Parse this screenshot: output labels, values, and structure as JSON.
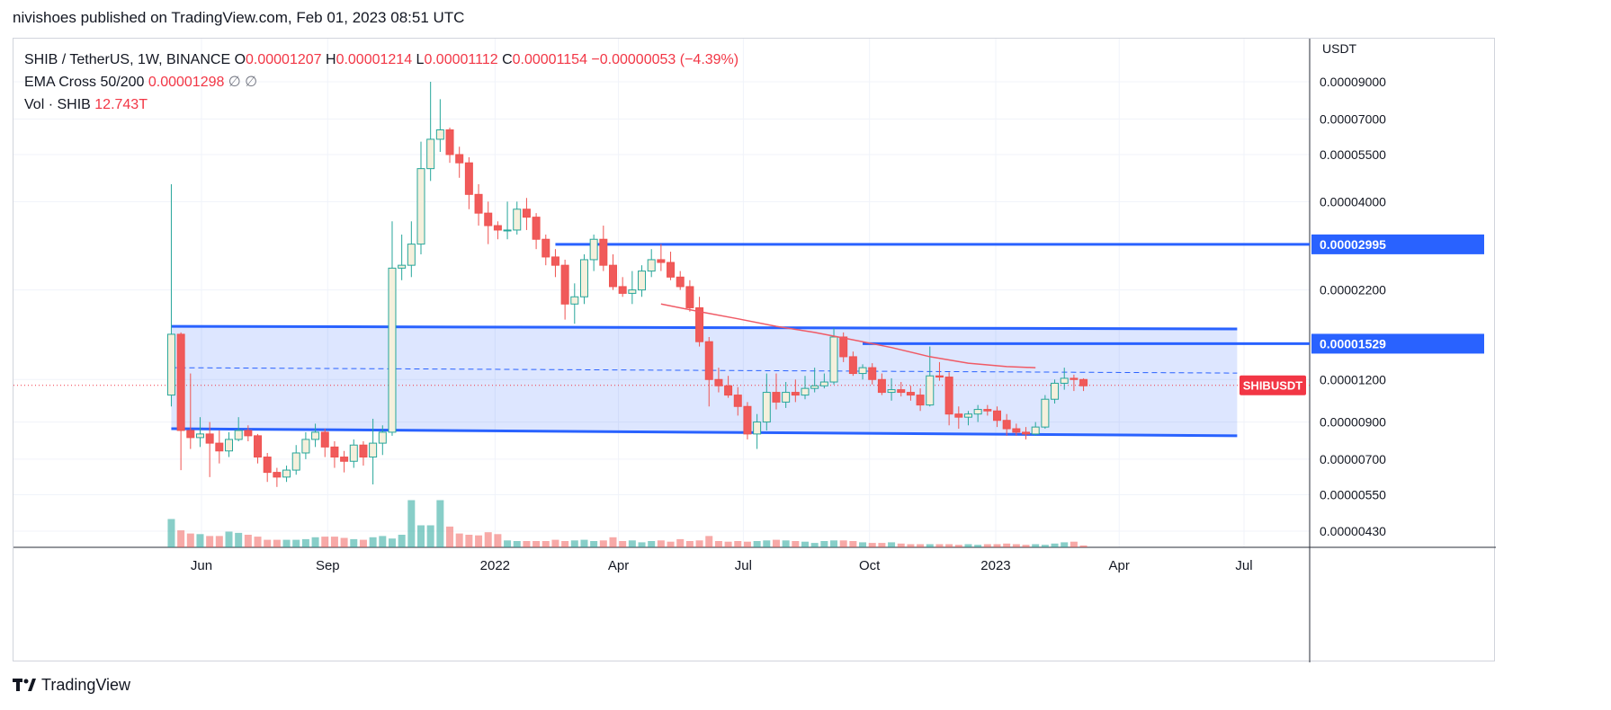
{
  "header": {
    "published_by": "nivishoes published on TradingView.com, Feb 01, 2023 08:51 UTC"
  },
  "legend": {
    "symbol": "SHIB / TetherUS, 1W, BINANCE",
    "open_label": "O",
    "open": "0.00001207",
    "high_label": "H",
    "high": "0.00001214",
    "low_label": "L",
    "low": "0.00001112",
    "close_label": "C",
    "close": "0.00001154",
    "change": "−0.00000053 (−4.39%)",
    "ema_label": "EMA Cross 50/200",
    "ema_value": "0.00001298",
    "ema_extra1": "∅",
    "ema_extra2": "∅",
    "vol_label": "Vol · SHIB",
    "vol_value": "12.743T"
  },
  "footer": {
    "brand": "TradingView"
  },
  "colors": {
    "up": "#26a69a",
    "down": "#ef5350",
    "up_fill": "#f5f0dc",
    "down_fill": "#f05a5a",
    "line": "#2962ff",
    "ema": "#f05a65",
    "zone": "rgba(41,98,255,0.16)",
    "vol_up": "rgba(38,166,154,0.55)",
    "vol_down": "rgba(239,83,80,0.5)"
  },
  "chart_data": {
    "type": "candlestick",
    "interval": "1W",
    "yscale": "log",
    "ylim": [
      3.8e-06,
      1.05e-05
    ],
    "yaxis_unit": "USDT",
    "yticks": [
      "0.00009000",
      "0.00007000",
      "0.00005500",
      "0.00004000",
      "0.00002200",
      "0.00001200",
      "0.00000900",
      "0.00000700",
      "0.00000550",
      "0.00000430"
    ],
    "ytick_values": [
      9e-05,
      7e-05,
      5.5e-05,
      4e-05,
      2.2e-05,
      1.2e-05,
      9e-06,
      7e-06,
      5.5e-06,
      4.3e-06
    ],
    "xticks": [
      "Jun",
      "Sep",
      "2022",
      "Apr",
      "Jul",
      "Oct",
      "2023",
      "Apr",
      "Jul"
    ],
    "xtick_dates": [
      "2021-06-01",
      "2021-09-01",
      "2022-01-01",
      "2022-04-01",
      "2022-07-01",
      "2022-10-01",
      "2023-01-01",
      "2023-04-01",
      "2023-07-01"
    ],
    "price_labels": [
      {
        "text": "0.00002995",
        "value": 2.995e-05
      },
      {
        "text": "0.00001529",
        "value": 1.529e-05
      },
      {
        "text": "SHIBUSDT",
        "value": 1.154e-05
      }
    ],
    "horizontal_lines": [
      {
        "value": 2.995e-05,
        "from": "2022-02-14",
        "to": "2023-07-31"
      },
      {
        "value": 1.529e-05,
        "from": "2022-09-26",
        "to": "2023-07-31"
      }
    ],
    "range_zone": {
      "top_from": 1.72e-05,
      "top_to": 1.69e-05,
      "bottom_from": 8.6e-06,
      "bottom_to": 8.2e-06,
      "from": "2021-05-10",
      "to": "2023-06-26"
    },
    "dashed_level": 1.3e-05,
    "current_price": 1.154e-05,
    "series": [
      {
        "name": "SHIB",
        "o": [
          1.08e-05,
          1.63e-05,
          8.5e-06,
          8.1e-06,
          8.3e-06,
          7.8e-06,
          7.4e-06,
          8e-06,
          8.5e-06,
          8.2e-06,
          7.1e-06,
          6.4e-06,
          6.2e-06,
          6.5e-06,
          7.3e-06,
          8e-06,
          8.4e-06,
          7.6e-06,
          7.1e-06,
          6.9e-06,
          7.7e-06,
          7.1e-06,
          7.8e-06,
          8.4e-06,
          2.55e-05,
          2.6e-05,
          3e-05,
          5e-05,
          6.1e-05,
          6.5e-05,
          5.5e-05,
          5.2e-05,
          4.2e-05,
          3.7e-05,
          3.4e-05,
          3.3e-05,
          3.3e-05,
          3.8e-05,
          3.6e-05,
          3.1e-05,
          2.75e-05,
          2.6e-05,
          2e-05,
          2.1e-05,
          2.7e-05,
          3.1e-05,
          2.6e-05,
          2.25e-05,
          2.15e-05,
          2.2e-05,
          2.5e-05,
          2.7e-05,
          2.65e-05,
          2.4e-05,
          2.25e-05,
          1.95e-05,
          1.55e-05,
          1.2e-05,
          1.15e-05,
          1.08e-05,
          1e-05,
          8.3e-06,
          9e-06,
          1.1e-05,
          1.03e-05,
          1.1e-05,
          1.08e-05,
          1.13e-05,
          1.15e-05,
          1.18e-05,
          1.6e-05,
          1.4e-05,
          1.25e-05,
          1.3e-05,
          1.2e-05,
          1.1e-05,
          1.12e-05,
          1.1e-05,
          1.08e-05,
          1.01e-05,
          1.23e-05,
          1.22e-05,
          9.5e-06,
          9.3e-06,
          9.5e-06,
          9.8e-06,
          9.7e-06,
          9.1e-06,
          8.6e-06,
          8.4e-06,
          8.3e-06,
          8.7e-06,
          1.05e-05,
          1.17e-05,
          1.21e-05,
          1.2e-05
        ],
        "c": [
          1.63e-05,
          8.5e-06,
          8.1e-06,
          8.3e-06,
          7.8e-06,
          7.4e-06,
          8e-06,
          8.5e-06,
          8.2e-06,
          7.1e-06,
          6.4e-06,
          6.2e-06,
          6.5e-06,
          7.3e-06,
          8e-06,
          8.4e-06,
          7.6e-06,
          7.1e-06,
          6.9e-06,
          7.7e-06,
          7.1e-06,
          7.8e-06,
          8.4e-06,
          2.55e-05,
          2.6e-05,
          3e-05,
          5e-05,
          6.1e-05,
          6.5e-05,
          5.5e-05,
          5.2e-05,
          4.2e-05,
          3.7e-05,
          3.4e-05,
          3.3e-05,
          3.3e-05,
          3.8e-05,
          3.6e-05,
          3.1e-05,
          2.75e-05,
          2.6e-05,
          2e-05,
          2.1e-05,
          2.7e-05,
          3.1e-05,
          2.6e-05,
          2.25e-05,
          2.15e-05,
          2.2e-05,
          2.5e-05,
          2.7e-05,
          2.65e-05,
          2.4e-05,
          2.25e-05,
          1.95e-05,
          1.55e-05,
          1.2e-05,
          1.15e-05,
          1.08e-05,
          1e-05,
          8.3e-06,
          9e-06,
          1.1e-05,
          1.03e-05,
          1.1e-05,
          1.08e-05,
          1.13e-05,
          1.15e-05,
          1.18e-05,
          1.6e-05,
          1.4e-05,
          1.25e-05,
          1.3e-05,
          1.2e-05,
          1.1e-05,
          1.12e-05,
          1.1e-05,
          1.08e-05,
          1.01e-05,
          1.23e-05,
          1.22e-05,
          9.5e-06,
          9.3e-06,
          9.5e-06,
          9.8e-06,
          9.7e-06,
          9.1e-06,
          8.6e-06,
          8.4e-06,
          8.3e-06,
          8.7e-06,
          1.05e-05,
          1.17e-05,
          1.21e-05,
          1.2e-05,
          1.15e-05
        ],
        "h": [
          4.5e-05,
          1.65e-05,
          1.25e-05,
          9.3e-06,
          9e-06,
          8.5e-06,
          8.4e-06,
          9.3e-06,
          8.8e-06,
          8.3e-06,
          7.3e-06,
          6.6e-06,
          6.7e-06,
          7.7e-06,
          8.4e-06,
          8.9e-06,
          8.6e-06,
          7.9e-06,
          7.4e-06,
          8e-06,
          7.9e-06,
          9.2e-06,
          8.8e-06,
          3.5e-05,
          3.2e-05,
          3.5e-05,
          6e-05,
          9e-05,
          8e-05,
          6.6e-05,
          5.8e-05,
          5.4e-05,
          4.5e-05,
          4e-05,
          3.5e-05,
          4e-05,
          4e-05,
          4.1e-05,
          3.7e-05,
          3.2e-05,
          2.9e-05,
          2.7e-05,
          2.3e-05,
          2.8e-05,
          3.2e-05,
          3.4e-05,
          2.8e-05,
          2.4e-05,
          2.5e-05,
          2.6e-05,
          2.9e-05,
          3e-05,
          2.85e-05,
          2.5e-05,
          2.35e-05,
          2.1e-05,
          1.6e-05,
          1.3e-05,
          1.23e-05,
          1.14e-05,
          1.03e-05,
          9.5e-06,
          1.25e-05,
          1.25e-05,
          1.18e-05,
          1.2e-05,
          1.23e-05,
          1.3e-05,
          1.25e-05,
          1.7e-05,
          1.65e-05,
          1.45e-05,
          1.33e-05,
          1.34e-05,
          1.25e-05,
          1.21e-05,
          1.18e-05,
          1.15e-05,
          1.13e-05,
          1.5e-05,
          1.35e-05,
          1.26e-05,
          1e-05,
          9.7e-06,
          1.01e-05,
          1.01e-05,
          1e-05,
          9.5e-06,
          8.9e-06,
          8.7e-06,
          9e-06,
          1.08e-05,
          1.2e-05,
          1.3e-05,
          1.24e-05,
          1.21e-05
        ],
        "l": [
          1e-05,
          6.5e-06,
          7.5e-06,
          7.6e-06,
          6.2e-06,
          6.8e-06,
          7.1e-06,
          7.9e-06,
          7.9e-06,
          6.8e-06,
          6e-06,
          5.8e-06,
          6e-06,
          6.3e-06,
          7e-06,
          7.6e-06,
          7.1e-06,
          6.6e-06,
          6.4e-06,
          6.6e-06,
          6.7e-06,
          5.9e-06,
          7.2e-06,
          8.2e-06,
          2.35e-05,
          2.4e-05,
          2.8e-05,
          4.6e-05,
          5.6e-05,
          5.2e-05,
          4.7e-05,
          3.8e-05,
          3.4e-05,
          3e-05,
          3.1e-05,
          3.1e-05,
          3.2e-05,
          3.3e-05,
          2.9e-05,
          2.6e-05,
          2.4e-05,
          1.8e-05,
          1.75e-05,
          2e-05,
          2.5e-05,
          2.5e-05,
          2.2e-05,
          2.1e-05,
          2e-05,
          2.1e-05,
          2.4e-05,
          2.5e-05,
          2.35e-05,
          2.2e-05,
          1.9e-05,
          1.5e-05,
          1e-05,
          1.1e-05,
          1.06e-05,
          9.4e-06,
          8e-06,
          7.5e-06,
          8.5e-06,
          9.8e-06,
          9.9e-06,
          1.03e-05,
          1.05e-05,
          1.1e-05,
          1.13e-05,
          1.16e-05,
          1.35e-05,
          1.23e-05,
          1.2e-05,
          1.16e-05,
          1.08e-05,
          1.04e-05,
          1.07e-05,
          1.04e-05,
          9.7e-06,
          1e-05,
          1.19e-05,
          8.8e-06,
          8.6e-06,
          8.8e-06,
          9e-06,
          9.4e-06,
          8.7e-06,
          8.2e-06,
          8.2e-06,
          8e-06,
          8.2e-06,
          8.6e-06,
          1.02e-05,
          1.12e-05,
          1.11e-05,
          1.11e-05
        ],
        "vol": [
          0.45,
          0.27,
          0.22,
          0.21,
          0.18,
          0.18,
          0.25,
          0.23,
          0.2,
          0.17,
          0.12,
          0.12,
          0.12,
          0.12,
          0.13,
          0.16,
          0.17,
          0.17,
          0.15,
          0.13,
          0.12,
          0.16,
          0.18,
          0.14,
          0.2,
          0.75,
          0.35,
          0.35,
          0.75,
          0.33,
          0.22,
          0.2,
          0.19,
          0.24,
          0.21,
          0.11,
          0.1,
          0.1,
          0.1,
          0.1,
          0.12,
          0.1,
          0.11,
          0.12,
          0.1,
          0.11,
          0.16,
          0.1,
          0.11,
          0.08,
          0.1,
          0.11,
          0.09,
          0.13,
          0.1,
          0.11,
          0.18,
          0.1,
          0.09,
          0.1,
          0.09,
          0.1,
          0.11,
          0.12,
          0.11,
          0.1,
          0.09,
          0.07,
          0.1,
          0.11,
          0.11,
          0.1,
          0.08,
          0.07,
          0.07,
          0.08,
          0.06,
          0.05,
          0.05,
          0.05,
          0.05,
          0.05,
          0.04,
          0.05,
          0.04,
          0.05,
          0.05,
          0.06,
          0.05,
          0.04,
          0.05,
          0.04,
          0.06,
          0.08,
          0.09,
          0.03
        ]
      }
    ],
    "ema_line": [
      {
        "date": "2022-05-02",
        "value": 2e-05
      },
      {
        "date": "2022-05-30",
        "value": 1.9e-05
      },
      {
        "date": "2022-06-27",
        "value": 1.81e-05
      },
      {
        "date": "2022-07-25",
        "value": 1.72e-05
      },
      {
        "date": "2022-08-22",
        "value": 1.65e-05
      },
      {
        "date": "2022-09-19",
        "value": 1.57e-05
      },
      {
        "date": "2022-10-17",
        "value": 1.49e-05
      },
      {
        "date": "2022-11-14",
        "value": 1.4e-05
      },
      {
        "date": "2022-12-12",
        "value": 1.34e-05
      },
      {
        "date": "2023-01-09",
        "value": 1.31e-05
      },
      {
        "date": "2023-01-30",
        "value": 1.3e-05
      }
    ],
    "start_date": "2021-05-10"
  }
}
